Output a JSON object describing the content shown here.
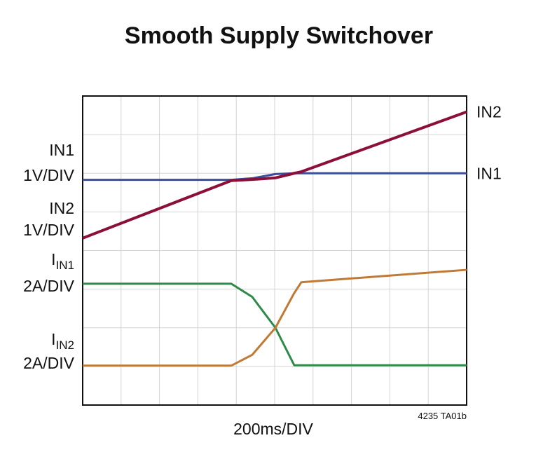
{
  "chart_data": {
    "type": "line",
    "title": "Smooth Supply Switchover",
    "x_label": "200ms/DIV",
    "note": "4235 TA01b",
    "x": [
      0,
      774,
      883,
      1004,
      1102,
      1139,
      2000
    ],
    "xlim": [
      0,
      2000
    ],
    "ylim": [
      0,
      8
    ],
    "xticks": [
      0,
      200,
      400,
      600,
      800,
      1000,
      1200,
      1400,
      1600,
      1800,
      2000
    ],
    "yticks": [
      0,
      1,
      2,
      3,
      4,
      5,
      6,
      7,
      8
    ],
    "grid": true,
    "series": [
      {
        "name": "IN1",
        "color": "#3a4f9c",
        "values": [
          5.83,
          5.83,
          5.87,
          5.98,
          6.0,
          6.0,
          6.0
        ]
      },
      {
        "name": "IN2",
        "color": "#8c0f3a",
        "values": [
          4.32,
          5.81,
          5.84,
          5.88,
          6.0,
          6.04,
          7.59
        ]
      },
      {
        "color": "#2e8a48",
        "values": [
          3.14,
          3.14,
          2.8,
          2.0,
          1.03,
          1.03,
          1.03
        ]
      },
      {
        "color": "#c07a35",
        "values": [
          1.02,
          1.02,
          1.3,
          2.0,
          2.9,
          3.18,
          3.5
        ]
      }
    ],
    "left_labels": [
      {
        "name": "IN1",
        "scale": "1V/DIV"
      },
      {
        "name": "IN2",
        "scale": "1V/DIV"
      },
      {
        "name": "I",
        "subscript": "IN1",
        "scale": "2A/DIV"
      },
      {
        "name": "I",
        "subscript": "IN2",
        "scale": "2A/DIV"
      }
    ]
  }
}
